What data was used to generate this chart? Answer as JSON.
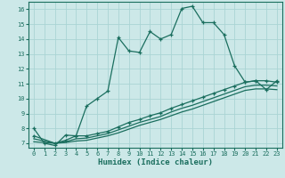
{
  "title": "",
  "xlabel": "Humidex (Indice chaleur)",
  "bg_color": "#cce8e8",
  "line_color": "#1a6e5e",
  "grid_color": "#aad4d4",
  "xlim": [
    -0.5,
    23.5
  ],
  "ylim": [
    6.7,
    16.5
  ],
  "yticks": [
    7,
    8,
    9,
    10,
    11,
    12,
    13,
    14,
    15,
    16
  ],
  "xticks": [
    0,
    1,
    2,
    3,
    4,
    5,
    6,
    7,
    8,
    9,
    10,
    11,
    12,
    13,
    14,
    15,
    16,
    17,
    18,
    19,
    20,
    21,
    22,
    23
  ],
  "line1_x": [
    0,
    1,
    2,
    3,
    4,
    5,
    6,
    7,
    8,
    9,
    10,
    11,
    12,
    13,
    14,
    15,
    16,
    17,
    18,
    19,
    20,
    21,
    22,
    23
  ],
  "line1_y": [
    8.0,
    7.0,
    6.85,
    7.55,
    7.5,
    9.5,
    10.0,
    10.5,
    14.1,
    13.2,
    13.1,
    14.5,
    14.0,
    14.3,
    16.05,
    16.2,
    15.1,
    15.1,
    14.3,
    12.2,
    11.1,
    11.2,
    10.6,
    11.2
  ],
  "line2_x": [
    0,
    2,
    3,
    4,
    5,
    6,
    7,
    8,
    9,
    10,
    11,
    12,
    13,
    14,
    15,
    16,
    17,
    18,
    19,
    20,
    21,
    22,
    23
  ],
  "line2_y": [
    7.5,
    7.0,
    7.2,
    7.5,
    7.5,
    7.65,
    7.8,
    8.1,
    8.4,
    8.6,
    8.85,
    9.05,
    9.35,
    9.6,
    9.85,
    10.1,
    10.35,
    10.6,
    10.85,
    11.1,
    11.2,
    11.2,
    11.1
  ],
  "line3_x": [
    0,
    2,
    3,
    4,
    5,
    6,
    7,
    8,
    9,
    10,
    11,
    12,
    13,
    14,
    15,
    16,
    17,
    18,
    19,
    20,
    21,
    22,
    23
  ],
  "line3_y": [
    7.3,
    7.0,
    7.1,
    7.3,
    7.35,
    7.5,
    7.65,
    7.9,
    8.15,
    8.4,
    8.6,
    8.8,
    9.1,
    9.35,
    9.55,
    9.8,
    10.05,
    10.3,
    10.55,
    10.8,
    10.9,
    10.9,
    10.85
  ],
  "line4_x": [
    0,
    2,
    3,
    4,
    5,
    6,
    7,
    8,
    9,
    10,
    11,
    12,
    13,
    14,
    15,
    16,
    17,
    18,
    19,
    20,
    21,
    22,
    23
  ],
  "line4_y": [
    7.1,
    7.0,
    7.05,
    7.15,
    7.2,
    7.35,
    7.5,
    7.7,
    7.95,
    8.2,
    8.4,
    8.6,
    8.85,
    9.1,
    9.3,
    9.55,
    9.8,
    10.05,
    10.3,
    10.55,
    10.65,
    10.65,
    10.6
  ]
}
